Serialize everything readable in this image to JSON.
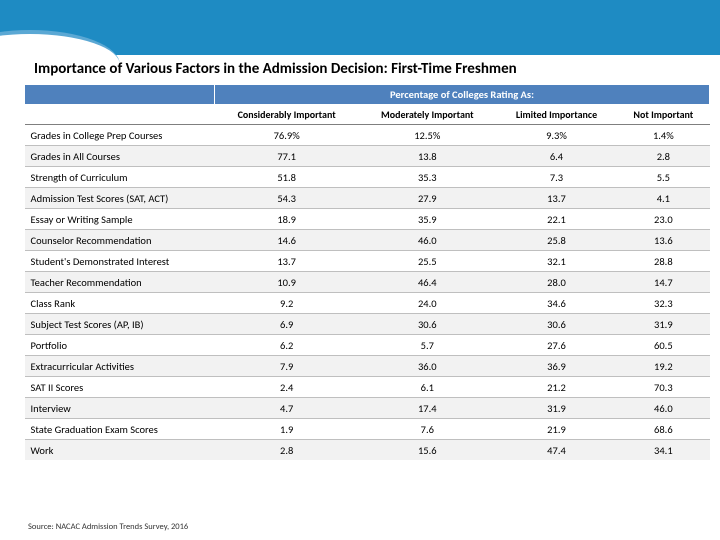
{
  "title": "Importance of Various Factors in the Admission Decision: First-Time Freshmen",
  "super_header": "Percentage of Colleges Rating As:",
  "columns": [
    "Considerably Important",
    "Moderately Important",
    "Limited Importance",
    "Not Important"
  ],
  "rows": [
    {
      "label": "Grades in College Prep Courses",
      "values": [
        "76.9%",
        "12.5%",
        "9.3%",
        "1.4%"
      ]
    },
    {
      "label": "Grades in All Courses",
      "values": [
        "77.1",
        "13.8",
        "6.4",
        "2.8"
      ]
    },
    {
      "label": "Strength of Curriculum",
      "values": [
        "51.8",
        "35.3",
        "7.3",
        "5.5"
      ]
    },
    {
      "label": "Admission Test Scores (SAT, ACT)",
      "values": [
        "54.3",
        "27.9",
        "13.7",
        "4.1"
      ]
    },
    {
      "label": "Essay or Writing Sample",
      "values": [
        "18.9",
        "35.9",
        "22.1",
        "23.0"
      ]
    },
    {
      "label": "Counselor Recommendation",
      "values": [
        "14.6",
        "46.0",
        "25.8",
        "13.6"
      ]
    },
    {
      "label": "Student's Demonstrated Interest",
      "values": [
        "13.7",
        "25.5",
        "32.1",
        "28.8"
      ]
    },
    {
      "label": "Teacher Recommendation",
      "values": [
        "10.9",
        "46.4",
        "28.0",
        "14.7"
      ]
    },
    {
      "label": "Class Rank",
      "values": [
        "9.2",
        "24.0",
        "34.6",
        "32.3"
      ]
    },
    {
      "label": "Subject Test Scores (AP, IB)",
      "values": [
        "6.9",
        "30.6",
        "30.6",
        "31.9"
      ]
    },
    {
      "label": "Portfolio",
      "values": [
        "6.2",
        "5.7",
        "27.6",
        "60.5"
      ]
    },
    {
      "label": "Extracurricular Activities",
      "values": [
        "7.9",
        "36.0",
        "36.9",
        "19.2"
      ]
    },
    {
      "label": "SAT II Scores",
      "values": [
        "2.4",
        "6.1",
        "21.2",
        "70.3"
      ]
    },
    {
      "label": "Interview",
      "values": [
        "4.7",
        "17.4",
        "31.9",
        "46.0"
      ]
    },
    {
      "label": "State Graduation Exam Scores",
      "values": [
        "1.9",
        "7.6",
        "21.9",
        "68.6"
      ]
    },
    {
      "label": "Work",
      "values": [
        "2.8",
        "15.6",
        "47.4",
        "34.1"
      ]
    }
  ],
  "source": "Source: NACAC Admission Trends Survey, 2016",
  "colors": {
    "header_bg": "#1e8bc3",
    "table_header_bg": "#4f81bd",
    "row_alt_bg": "#f2f2f2",
    "border": "#bfbfbf"
  }
}
